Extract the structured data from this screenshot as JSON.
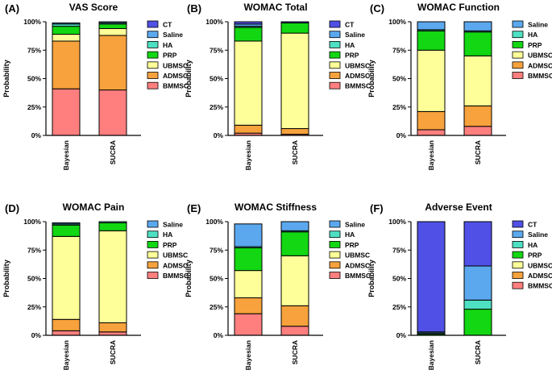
{
  "colors": {
    "CT": "#5050e6",
    "Saline": "#5ba8ee",
    "HA": "#4ee0c2",
    "PRP": "#12d712",
    "UBMSC": "#ffff99",
    "ADMSC": "#f7a23c",
    "BMMSC": "#ff7f7f"
  },
  "chart_data": [
    {
      "panel": "(A)",
      "type": "bar",
      "stacked": true,
      "title": "VAS Score",
      "ylabel": "Probability",
      "ylim": [
        0,
        100
      ],
      "yticks": [
        "0%",
        "25%",
        "50%",
        "75%",
        "100%"
      ],
      "categories": [
        "Bayesian",
        "SUCRA"
      ],
      "legend": [
        "CT",
        "Saline",
        "HA",
        "PRP",
        "UBMSC",
        "ADMSC",
        "BMMSC"
      ],
      "series": [
        {
          "name": "BMMSC",
          "values": [
            41,
            40
          ]
        },
        {
          "name": "ADMSC",
          "values": [
            42,
            48
          ]
        },
        {
          "name": "UBMSC",
          "values": [
            6,
            6
          ]
        },
        {
          "name": "PRP",
          "values": [
            7,
            4
          ]
        },
        {
          "name": "HA",
          "values": [
            2,
            1
          ]
        },
        {
          "name": "Saline",
          "values": [
            1,
            1
          ]
        },
        {
          "name": "CT",
          "values": [
            0,
            0
          ]
        }
      ]
    },
    {
      "panel": "(B)",
      "type": "bar",
      "stacked": true,
      "title": "WOMAC Total",
      "ylabel": "Probability",
      "ylim": [
        0,
        100
      ],
      "yticks": [
        "0%",
        "25%",
        "50%",
        "75%",
        "100%"
      ],
      "categories": [
        "Bayesian",
        "SUCRA"
      ],
      "legend": [
        "CT",
        "Saline",
        "HA",
        "PRP",
        "UBMSC",
        "ADMSC",
        "BMMSC"
      ],
      "series": [
        {
          "name": "BMMSC",
          "values": [
            2,
            1
          ]
        },
        {
          "name": "ADMSC",
          "values": [
            7,
            5
          ]
        },
        {
          "name": "UBMSC",
          "values": [
            74,
            84
          ]
        },
        {
          "name": "PRP",
          "values": [
            12,
            9
          ]
        },
        {
          "name": "HA",
          "values": [
            1,
            0
          ]
        },
        {
          "name": "Saline",
          "values": [
            2,
            0
          ]
        },
        {
          "name": "CT",
          "values": [
            2,
            1
          ]
        }
      ]
    },
    {
      "panel": "(C)",
      "type": "bar",
      "stacked": true,
      "title": "WOMAC Function",
      "ylabel": "Probability",
      "ylim": [
        0,
        100
      ],
      "yticks": [
        "0%",
        "25%",
        "50%",
        "75%",
        "100%"
      ],
      "categories": [
        "Bayesian",
        "SUCRA"
      ],
      "legend": [
        "Saline",
        "HA",
        "PRP",
        "UBMSC",
        "ADMSC",
        "BMMSC"
      ],
      "series": [
        {
          "name": "BMMSC",
          "values": [
            5,
            8
          ]
        },
        {
          "name": "ADMSC",
          "values": [
            16,
            18
          ]
        },
        {
          "name": "UBMSC",
          "values": [
            54,
            44
          ]
        },
        {
          "name": "PRP",
          "values": [
            17,
            21
          ]
        },
        {
          "name": "HA",
          "values": [
            1,
            1
          ]
        },
        {
          "name": "Saline",
          "values": [
            7,
            8
          ]
        }
      ]
    },
    {
      "panel": "(D)",
      "type": "bar",
      "stacked": true,
      "title": "WOMAC Pain",
      "ylabel": "Probability",
      "ylim": [
        0,
        100
      ],
      "yticks": [
        "0%",
        "25%",
        "50%",
        "75%",
        "100%"
      ],
      "categories": [
        "Bayesian",
        "SUCRA"
      ],
      "legend": [
        "Saline",
        "HA",
        "PRP",
        "UBMSC",
        "ADMSC",
        "BMMSC"
      ],
      "series": [
        {
          "name": "BMMSC",
          "values": [
            4,
            3
          ]
        },
        {
          "name": "ADMSC",
          "values": [
            10,
            8
          ]
        },
        {
          "name": "UBMSC",
          "values": [
            73,
            81
          ]
        },
        {
          "name": "PRP",
          "values": [
            10,
            7
          ]
        },
        {
          "name": "HA",
          "values": [
            1,
            1
          ]
        },
        {
          "name": "Saline",
          "values": [
            1,
            0
          ]
        }
      ]
    },
    {
      "panel": "(E)",
      "type": "bar",
      "stacked": true,
      "title": "WOMAC Stiffness",
      "ylabel": "Probability",
      "ylim": [
        0,
        100
      ],
      "yticks": [
        "0%",
        "25%",
        "50%",
        "75%",
        "100%"
      ],
      "categories": [
        "Bayesian",
        "SUCRA"
      ],
      "legend": [
        "Saline",
        "HA",
        "PRP",
        "UBMSC",
        "ADMSC",
        "BMMSC"
      ],
      "series": [
        {
          "name": "BMMSC",
          "values": [
            19,
            8
          ]
        },
        {
          "name": "ADMSC",
          "values": [
            14,
            18
          ]
        },
        {
          "name": "UBMSC",
          "values": [
            24,
            44
          ]
        },
        {
          "name": "PRP",
          "values": [
            20,
            21
          ]
        },
        {
          "name": "HA",
          "values": [
            1,
            1
          ]
        },
        {
          "name": "Saline",
          "values": [
            20,
            8
          ]
        }
      ]
    },
    {
      "panel": "(F)",
      "type": "bar",
      "stacked": true,
      "title": "Adverse Event",
      "ylabel": "Probability",
      "ylim": [
        0,
        100
      ],
      "yticks": [
        "0%",
        "25%",
        "50%",
        "75%",
        "100%"
      ],
      "categories": [
        "Bayesian",
        "SUCRA"
      ],
      "legend": [
        "CT",
        "Saline",
        "HA",
        "PRP",
        "UBMSC",
        "ADMSC",
        "BMMSC"
      ],
      "series": [
        {
          "name": "BMMSC",
          "values": [
            0,
            0
          ]
        },
        {
          "name": "ADMSC",
          "values": [
            0,
            0
          ]
        },
        {
          "name": "UBMSC",
          "values": [
            0,
            0
          ]
        },
        {
          "name": "PRP",
          "values": [
            1,
            23
          ]
        },
        {
          "name": "HA",
          "values": [
            1,
            8
          ]
        },
        {
          "name": "Saline",
          "values": [
            1,
            30
          ]
        },
        {
          "name": "CT",
          "values": [
            97,
            39
          ]
        }
      ]
    }
  ]
}
